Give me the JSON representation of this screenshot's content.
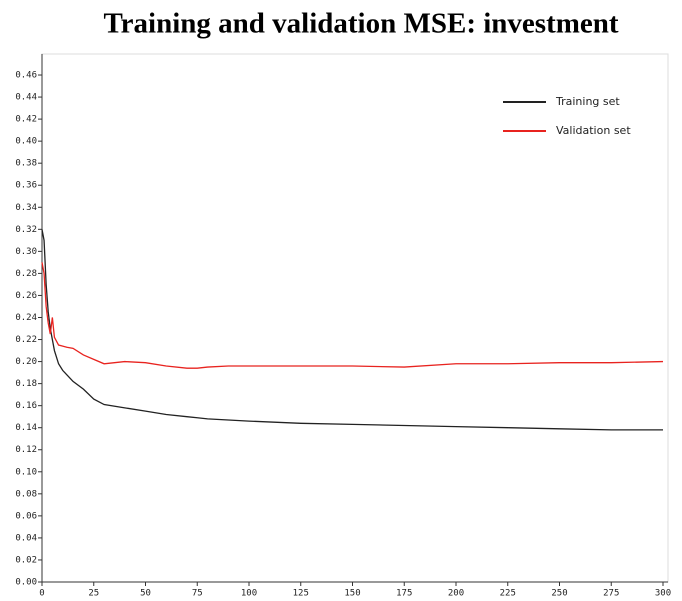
{
  "chart_data": {
    "type": "line",
    "title": "Training and validation MSE: investment",
    "x": [
      0,
      1,
      2,
      3,
      4,
      5,
      6,
      8,
      10,
      12,
      15,
      20,
      25,
      30,
      40,
      50,
      60,
      70,
      75,
      80,
      90,
      100,
      125,
      150,
      175,
      200,
      225,
      250,
      275,
      300
    ],
    "series": [
      {
        "name": "Training set",
        "color": "#222222",
        "values": [
          0.32,
          0.31,
          0.27,
          0.245,
          0.23,
          0.22,
          0.21,
          0.198,
          0.192,
          0.188,
          0.182,
          0.175,
          0.166,
          0.161,
          0.158,
          0.155,
          0.152,
          0.15,
          0.149,
          0.148,
          0.147,
          0.146,
          0.144,
          0.143,
          0.142,
          0.141,
          0.14,
          0.139,
          0.138,
          0.138
        ]
      },
      {
        "name": "Validation set",
        "color": "#e8231f",
        "values": [
          0.29,
          0.28,
          0.25,
          0.235,
          0.225,
          0.24,
          0.222,
          0.215,
          0.214,
          0.213,
          0.212,
          0.206,
          0.202,
          0.198,
          0.2,
          0.199,
          0.196,
          0.194,
          0.194,
          0.195,
          0.196,
          0.196,
          0.196,
          0.196,
          0.195,
          0.198,
          0.198,
          0.199,
          0.199,
          0.2
        ]
      }
    ],
    "xlim": [
      0,
      300
    ],
    "xticks": [
      0,
      25,
      50,
      75,
      100,
      125,
      150,
      175,
      200,
      225,
      250,
      275,
      300
    ],
    "ylim": [
      0,
      0.47
    ],
    "yticks": [
      {
        "value": 0,
        "label": "0.00"
      },
      0.02,
      0.04,
      0.06,
      0.08,
      {
        "value": 0.1,
        "label": "0.10"
      },
      0.12,
      0.14,
      0.16,
      0.18,
      {
        "value": 0.2,
        "label": "0.20"
      },
      0.22,
      0.24,
      0.26,
      0.28,
      {
        "value": 0.3,
        "label": "0.30"
      },
      0.32,
      0.34,
      0.36,
      0.38,
      {
        "value": 0.4,
        "label": "0.40"
      },
      0.42,
      0.44,
      0.46
    ],
    "grid": false,
    "legend": "top-right"
  }
}
